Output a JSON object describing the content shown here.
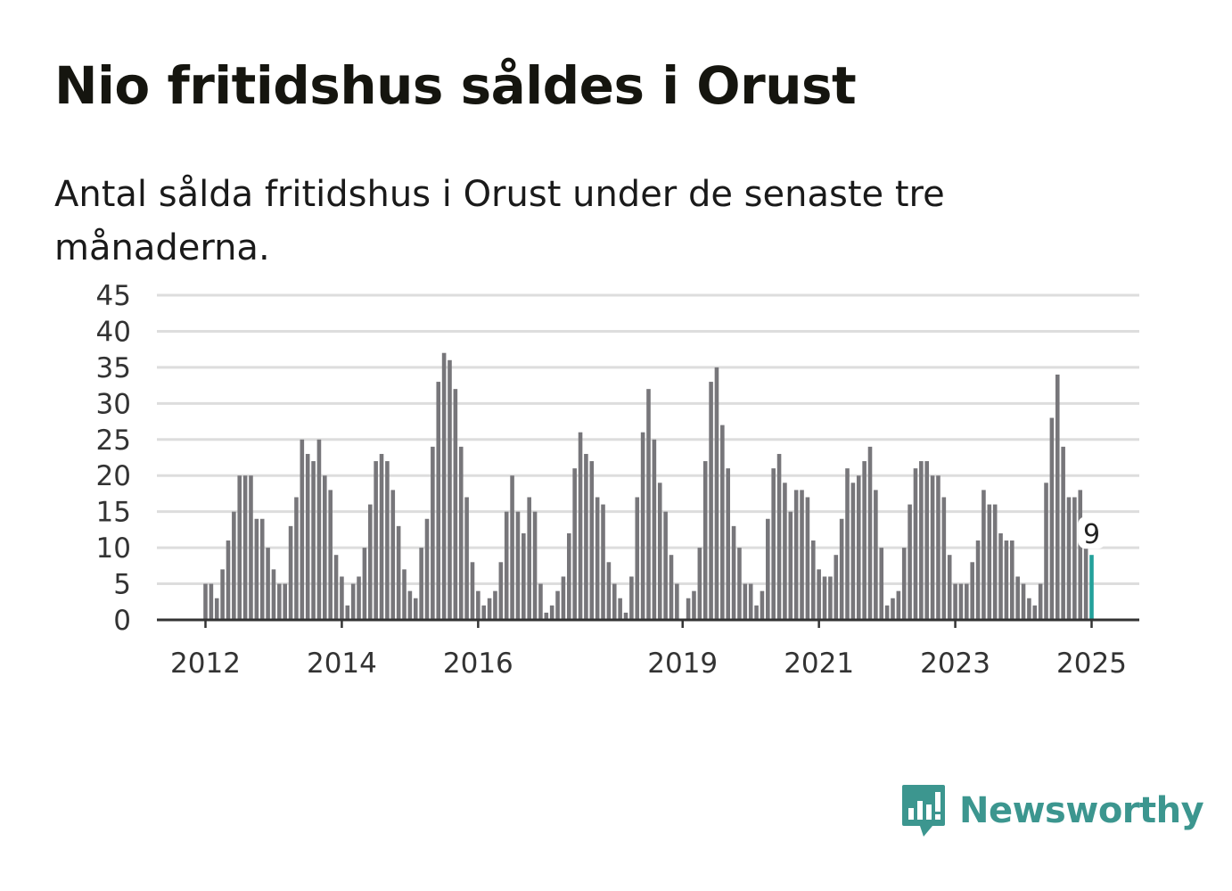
{
  "title": "Nio fritidshus såldes i Orust",
  "subtitle": "Antal sålda fritidshus i Orust under de senaste tre månaderna.",
  "brand": {
    "name": "Newsworthy",
    "color": "#3c968f"
  },
  "colors": {
    "bar": "#77767a",
    "highlight": "#23a19b",
    "grid": "#dddddd",
    "axis": "#333333"
  },
  "chart_data": {
    "type": "bar",
    "title": "Nio fritidshus såldes i Orust",
    "subtitle": "Antal sålda fritidshus i Orust under de senaste tre månaderna.",
    "xlabel": "",
    "ylabel": "",
    "ylim": [
      0,
      45
    ],
    "yticks": [
      0,
      5,
      10,
      15,
      20,
      25,
      30,
      35,
      40,
      45
    ],
    "xtick_labels": [
      "2012",
      "2014",
      "2016",
      "2019",
      "2021",
      "2023",
      "2025"
    ],
    "grid": true,
    "start_month": "2012-01",
    "end_month": "2025-01",
    "values": [
      5,
      5,
      3,
      7,
      11,
      15,
      20,
      20,
      20,
      14,
      14,
      10,
      7,
      5,
      5,
      13,
      17,
      25,
      23,
      22,
      25,
      20,
      18,
      9,
      6,
      2,
      5,
      6,
      10,
      16,
      22,
      23,
      22,
      18,
      13,
      7,
      4,
      3,
      10,
      14,
      24,
      33,
      37,
      36,
      32,
      24,
      17,
      8,
      4,
      2,
      3,
      4,
      8,
      15,
      20,
      15,
      12,
      17,
      15,
      5,
      1,
      2,
      4,
      6,
      12,
      21,
      26,
      23,
      22,
      17,
      16,
      8,
      5,
      3,
      1,
      6,
      17,
      26,
      32,
      25,
      19,
      15,
      9,
      5,
      0,
      3,
      4,
      10,
      22,
      33,
      35,
      27,
      21,
      13,
      10,
      5,
      5,
      2,
      4,
      14,
      21,
      23,
      19,
      15,
      18,
      18,
      17,
      11,
      7,
      6,
      6,
      9,
      14,
      21,
      19,
      20,
      22,
      24,
      18,
      10,
      2,
      3,
      4,
      10,
      16,
      21,
      22,
      22,
      20,
      20,
      17,
      9,
      5,
      5,
      5,
      8,
      11,
      18,
      16,
      16,
      12,
      11,
      11,
      6,
      5,
      3,
      2,
      5,
      19,
      28,
      34,
      24,
      17,
      17,
      18,
      11,
      9
    ],
    "highlight_last": true,
    "annotation": {
      "label": "9",
      "value": 9,
      "date": "2025-01"
    }
  }
}
